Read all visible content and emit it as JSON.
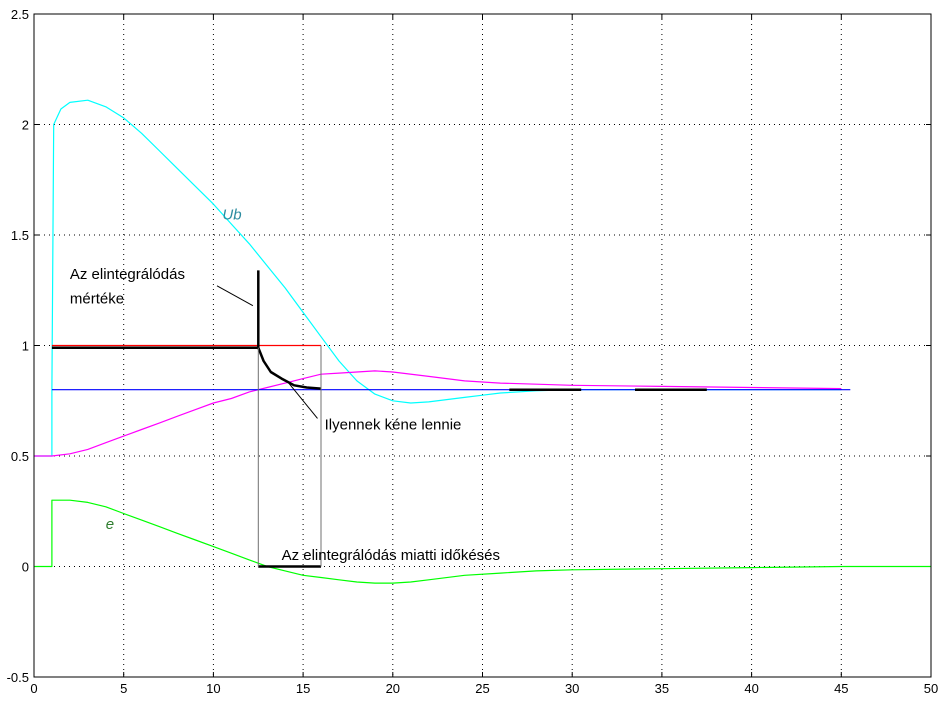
{
  "chart_data": {
    "type": "line",
    "xlim": [
      0,
      50
    ],
    "ylim": [
      -0.5,
      2.5
    ],
    "grid": true,
    "xticks": [
      0,
      5,
      10,
      15,
      20,
      25,
      30,
      35,
      40,
      45,
      50
    ],
    "yticks": [
      -0.5,
      0,
      0.5,
      1,
      1.5,
      2,
      2.5
    ],
    "xtick_labels": [
      "0",
      "5",
      "10",
      "15",
      "20",
      "25",
      "30",
      "35",
      "40",
      "45",
      "50"
    ],
    "ytick_labels": [
      "-0.5",
      "0",
      "0.5",
      "1",
      "1.5",
      "2",
      "2.5"
    ],
    "series": [
      {
        "name": "Ub",
        "color": "#00ffff",
        "x": [
          0,
          1,
          1,
          1.1,
          1.5,
          2,
          3,
          4,
          5,
          6,
          7,
          8,
          9,
          10,
          11,
          12,
          12.5,
          13,
          14,
          15,
          16,
          17,
          18,
          19,
          20,
          21,
          22,
          23,
          24,
          25,
          26,
          28,
          30,
          35,
          40,
          45
        ],
        "y": [
          0.5,
          0.5,
          0.8,
          2.0,
          2.07,
          2.1,
          2.11,
          2.08,
          2.03,
          1.96,
          1.88,
          1.8,
          1.72,
          1.64,
          1.55,
          1.46,
          1.41,
          1.36,
          1.26,
          1.15,
          1.04,
          0.93,
          0.84,
          0.78,
          0.75,
          0.74,
          0.745,
          0.755,
          0.765,
          0.775,
          0.785,
          0.795,
          0.8,
          0.8,
          0.8,
          0.8
        ]
      },
      {
        "name": "",
        "color": "#ff00ff",
        "x": [
          0,
          1,
          2,
          3,
          4,
          5,
          6,
          7,
          8,
          9,
          10,
          11,
          12,
          13,
          14,
          15,
          16,
          17,
          18,
          19,
          20,
          22,
          24,
          26,
          28,
          30,
          35,
          40,
          45
        ],
        "y": [
          0.5,
          0.5,
          0.51,
          0.53,
          0.56,
          0.59,
          0.62,
          0.65,
          0.68,
          0.71,
          0.74,
          0.76,
          0.79,
          0.81,
          0.83,
          0.85,
          0.87,
          0.875,
          0.88,
          0.885,
          0.88,
          0.86,
          0.84,
          0.83,
          0.825,
          0.82,
          0.815,
          0.81,
          0.805
        ]
      },
      {
        "name": "e",
        "color": "#00ff00",
        "x": [
          0,
          1,
          1,
          2,
          3,
          4,
          5,
          6,
          7,
          8,
          9,
          10,
          11,
          12,
          13,
          14,
          15,
          16,
          17,
          18,
          19,
          20,
          21,
          22,
          24,
          26,
          28,
          30,
          35,
          40,
          45,
          50
        ],
        "y": [
          0,
          0,
          0.3,
          0.3,
          0.29,
          0.27,
          0.24,
          0.21,
          0.18,
          0.15,
          0.12,
          0.09,
          0.06,
          0.03,
          0.0,
          -0.02,
          -0.04,
          -0.05,
          -0.06,
          -0.07,
          -0.075,
          -0.075,
          -0.07,
          -0.06,
          -0.04,
          -0.03,
          -0.02,
          -0.015,
          -0.01,
          -0.005,
          0,
          0
        ]
      },
      {
        "name": "",
        "color": "#0000ff",
        "x": [
          1,
          45.5
        ],
        "y": [
          0.8,
          0.8
        ]
      },
      {
        "name": "",
        "color": "#ff0000",
        "x": [
          1,
          16
        ],
        "y": [
          1.0,
          1.0
        ]
      }
    ],
    "overlays": [
      {
        "color": "#000000",
        "width": 2.5,
        "x": [
          1,
          12.5
        ],
        "y": [
          0.99,
          0.99
        ]
      },
      {
        "color": "#000000",
        "width": 2.5,
        "x": [
          12.5,
          12.5
        ],
        "y": [
          0.99,
          1.34
        ]
      },
      {
        "color": "#000000",
        "width": 2.5,
        "x": [
          12.5,
          12.8,
          13.2,
          13.8,
          14.5,
          15.2,
          16
        ],
        "y": [
          0.99,
          0.93,
          0.88,
          0.85,
          0.82,
          0.81,
          0.805
        ]
      },
      {
        "color": "#000000",
        "width": 2.5,
        "x": [
          12.5,
          16
        ],
        "y": [
          0,
          0
        ]
      },
      {
        "color": "#707070",
        "width": 1,
        "x": [
          12.5,
          12.5
        ],
        "y": [
          0,
          0.99
        ]
      },
      {
        "color": "#707070",
        "width": 1,
        "x": [
          16,
          16
        ],
        "y": [
          0,
          1.0
        ]
      },
      {
        "color": "#000000",
        "width": 2.5,
        "x": [
          26.5,
          30.5
        ],
        "y": [
          0.8,
          0.8
        ]
      },
      {
        "color": "#000000",
        "width": 2.5,
        "x": [
          33.5,
          37.5
        ],
        "y": [
          0.8,
          0.8
        ]
      },
      {
        "color": "#000000",
        "width": 1,
        "x": [
          10.2,
          12.2
        ],
        "y": [
          1.27,
          1.18
        ]
      },
      {
        "color": "#000000",
        "width": 1,
        "x": [
          14.2,
          15.8
        ],
        "y": [
          0.83,
          0.67
        ]
      }
    ],
    "annotations": [
      {
        "text": "Az elintegrálódás",
        "x": 2,
        "y": 1.3
      },
      {
        "text": "mértéke",
        "x": 2,
        "y": 1.19
      },
      {
        "text": "Ilyennek kéne lennie",
        "x": 16.2,
        "y": 0.62
      },
      {
        "text": "Az elintegrálódás miatti időkésés",
        "x": 13.8,
        "y": 0.03
      }
    ],
    "series_labels": [
      {
        "text": "Ub",
        "x": 10.5,
        "y": 1.57,
        "color": "#2c8ca0"
      },
      {
        "text": "e",
        "x": 4,
        "y": 0.17,
        "color": "#2e7d2e"
      }
    ]
  }
}
